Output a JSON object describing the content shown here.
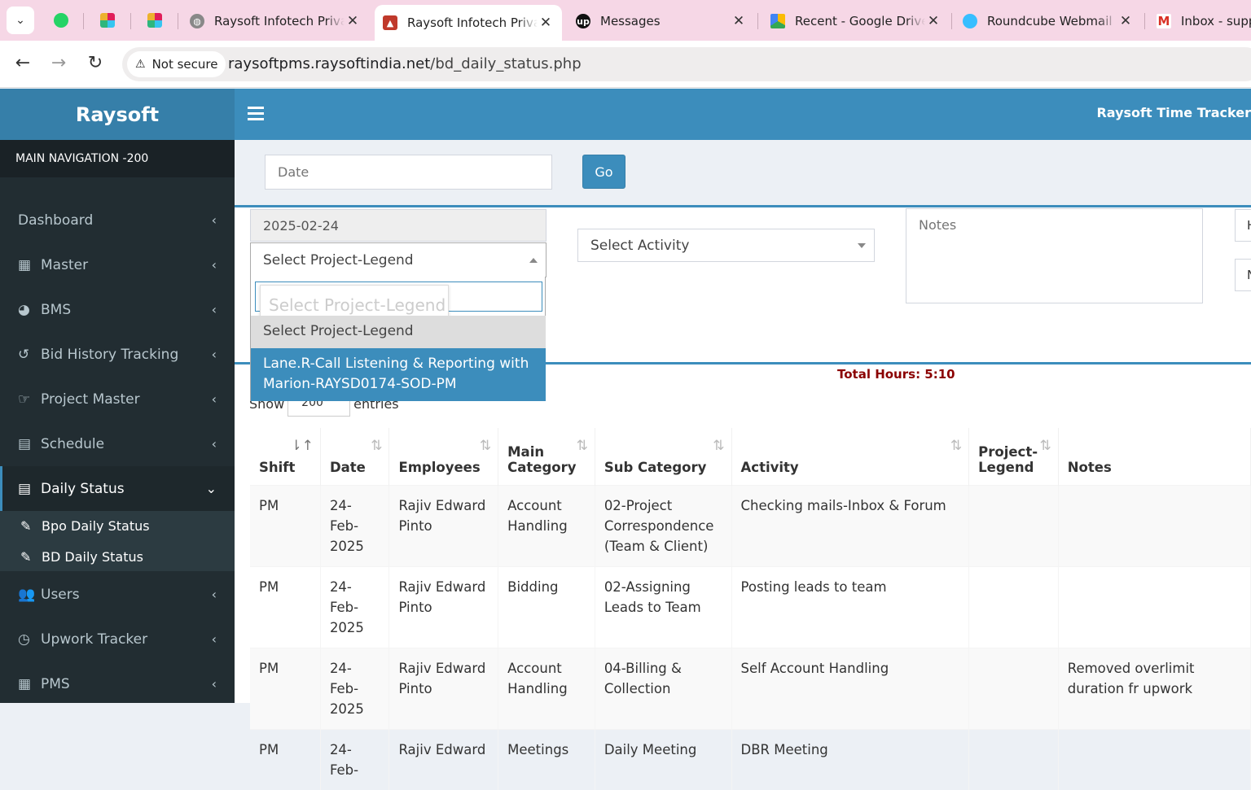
{
  "browser": {
    "tabs": [
      {
        "title": "Raysoft Infotech Privat",
        "active": false
      },
      {
        "title": "Raysoft Infotech Privat",
        "active": true
      },
      {
        "title": "Messages",
        "active": false
      },
      {
        "title": "Recent - Google Drive",
        "active": false
      },
      {
        "title": "Roundcube Webmail :: ",
        "active": false
      },
      {
        "title": "Inbox - suppo",
        "active": false
      }
    ],
    "security_label": "Not secure",
    "url_host": "raysoftpms.raysoftindia.net",
    "url_path": "/bd_daily_status.php"
  },
  "header": {
    "logo": "Raysoft",
    "app_title": "Raysoft Time Tracker"
  },
  "sidebar": {
    "section_title": "MAIN NAVIGATION -200",
    "items": [
      {
        "label": "Dashboard",
        "icon": "dashboard-icon"
      },
      {
        "label": "Master",
        "icon": "grid-icon"
      },
      {
        "label": "BMS",
        "icon": "pie-chart-icon"
      },
      {
        "label": "Bid History Tracking",
        "icon": "history-icon"
      },
      {
        "label": "Project Master",
        "icon": "hand-point-icon"
      },
      {
        "label": "Schedule",
        "icon": "table-icon"
      },
      {
        "label": "Daily Status",
        "icon": "table-icon"
      },
      {
        "label": "Users",
        "icon": "users-icon"
      },
      {
        "label": "Upwork Tracker",
        "icon": "clock-icon"
      },
      {
        "label": "PMS",
        "icon": "calendar-icon"
      }
    ],
    "subitems": [
      {
        "label": "Bpo Daily Status",
        "icon": "edit-icon"
      },
      {
        "label": "BD Daily Status",
        "icon": "edit-icon"
      }
    ]
  },
  "filter": {
    "date_placeholder": "Date",
    "go_label": "Go"
  },
  "form": {
    "date_value": "2025-02-24",
    "project_select_value": "Select Project-Legend",
    "activity_select_value": "Select Activity",
    "notes_placeholder": "Notes",
    "edge_box_1": "H",
    "edge_box_2": "N"
  },
  "dropdown": {
    "search_placeholder": "Select Project-Legend",
    "options": [
      {
        "label": "Select Project-Legend"
      },
      {
        "label": "Lane.R-Call Listening & Reporting with Marion-RAYSD0174-SOD-PM"
      }
    ]
  },
  "summary": {
    "total_hours": "Total Hours: 5:10",
    "show_label": "Show",
    "entries_value": "200",
    "entries_label": "entries"
  },
  "table": {
    "columns": [
      "Shift",
      "Date",
      "Employees",
      "Main Category",
      "Sub Category",
      "Activity",
      "Project-Legend",
      "Notes"
    ],
    "rows": [
      {
        "shift": "PM",
        "date": "24-Feb-2025",
        "employee": "Rajiv Edward Pinto",
        "main_category": "Account Handling",
        "sub_category": "02-Project Correspondence (Team & Client)",
        "activity": "Checking mails-Inbox & Forum",
        "project_legend": "",
        "notes": ""
      },
      {
        "shift": "PM",
        "date": "24-Feb-2025",
        "employee": "Rajiv Edward Pinto",
        "main_category": "Bidding",
        "sub_category": "02-Assigning Leads to Team",
        "activity": "Posting leads to team",
        "project_legend": "",
        "notes": ""
      },
      {
        "shift": "PM",
        "date": "24-Feb-2025",
        "employee": "Rajiv Edward Pinto",
        "main_category": "Account Handling",
        "sub_category": "04-Billing & Collection",
        "activity": "Self Account Handling",
        "project_legend": "",
        "notes": "Removed overlimit duration fr upwork"
      },
      {
        "shift": "PM",
        "date": "24-Feb-",
        "employee": "Rajiv Edward",
        "main_category": "Meetings",
        "sub_category": "Daily Meeting",
        "activity": "DBR Meeting",
        "project_legend": "",
        "notes": ""
      }
    ]
  }
}
